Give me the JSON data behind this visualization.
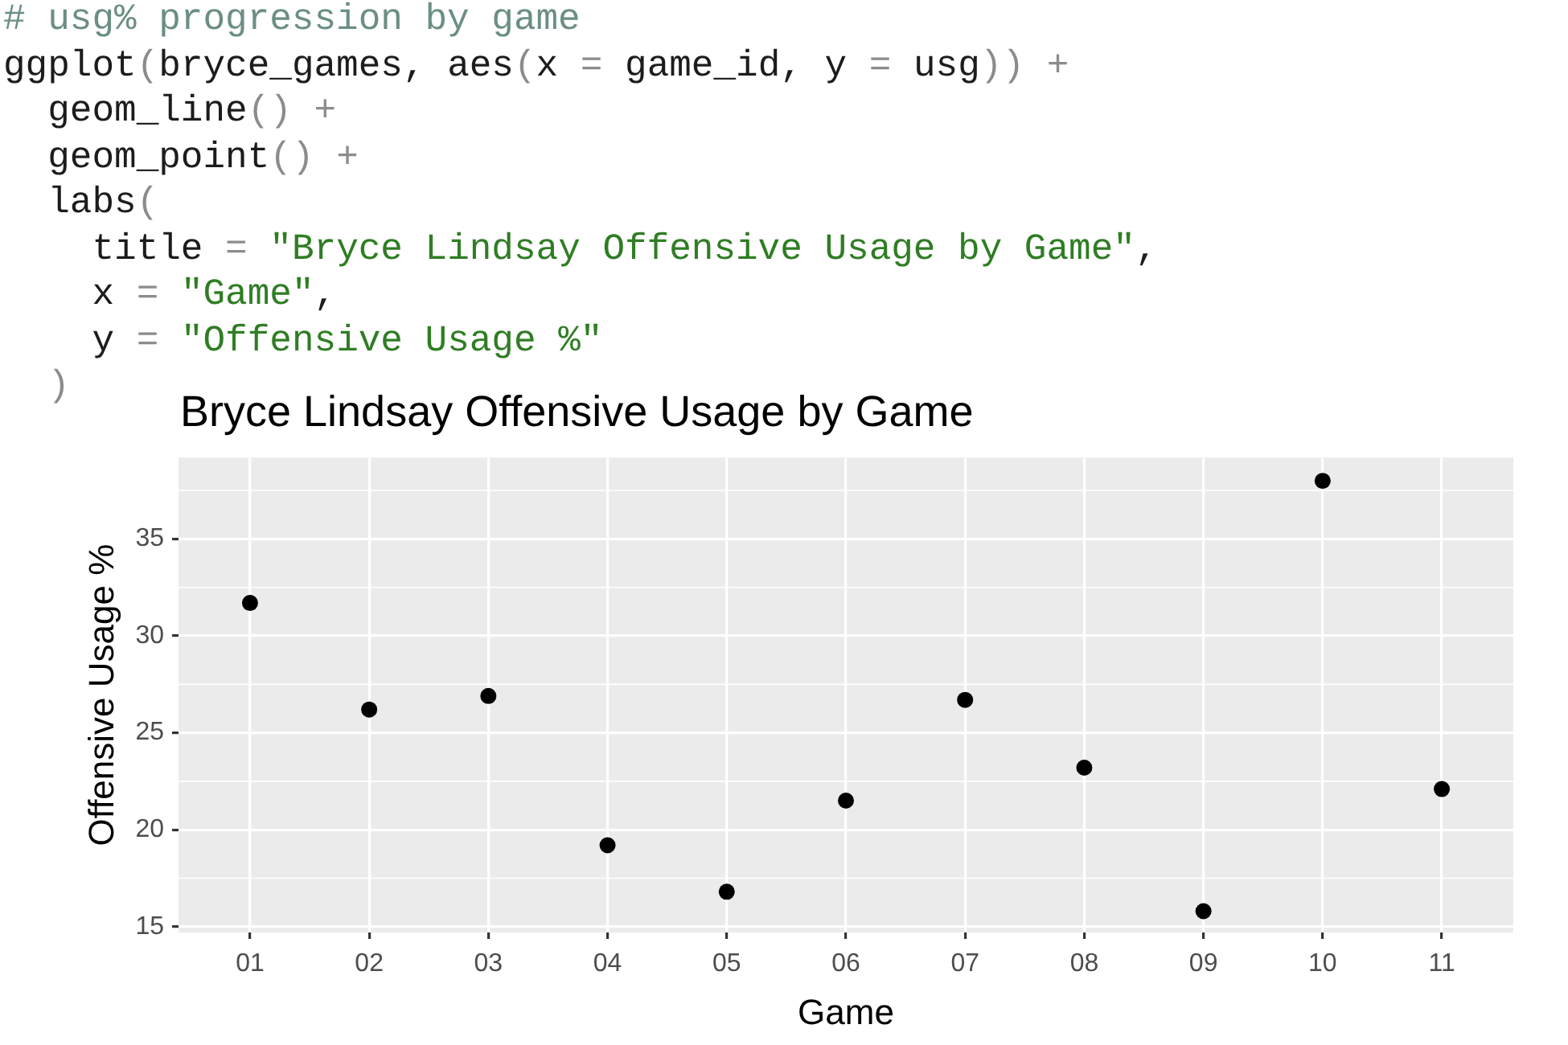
{
  "chart_data": {
    "type": "scatter",
    "title": "Bryce Lindsay Offensive Usage by Game",
    "xlabel": "Game",
    "ylabel": "Offensive Usage %",
    "categories": [
      "01",
      "02",
      "03",
      "04",
      "05",
      "06",
      "07",
      "08",
      "09",
      "10",
      "11"
    ],
    "values": [
      31.7,
      26.2,
      26.9,
      19.2,
      16.8,
      21.5,
      26.7,
      23.2,
      15.8,
      38.0,
      22.1
    ],
    "color": "#000000",
    "ylim": [
      14.7,
      39.2
    ],
    "yticks": [
      15,
      20,
      25,
      30,
      35
    ],
    "grid": true,
    "marker": "circle",
    "annotations": [
      "# usg% progression by game",
      "ggplot(bryce_games, aes(x = game_id, y = usg)) +",
      "  geom_line() +",
      "  geom_point() +",
      "  labs(",
      "    title = \"Bryce Lindsay Offensive Usage by Game\",",
      "    x = \"Game\",",
      "    y = \"Offensive Usage %\"",
      "  )"
    ]
  }
}
